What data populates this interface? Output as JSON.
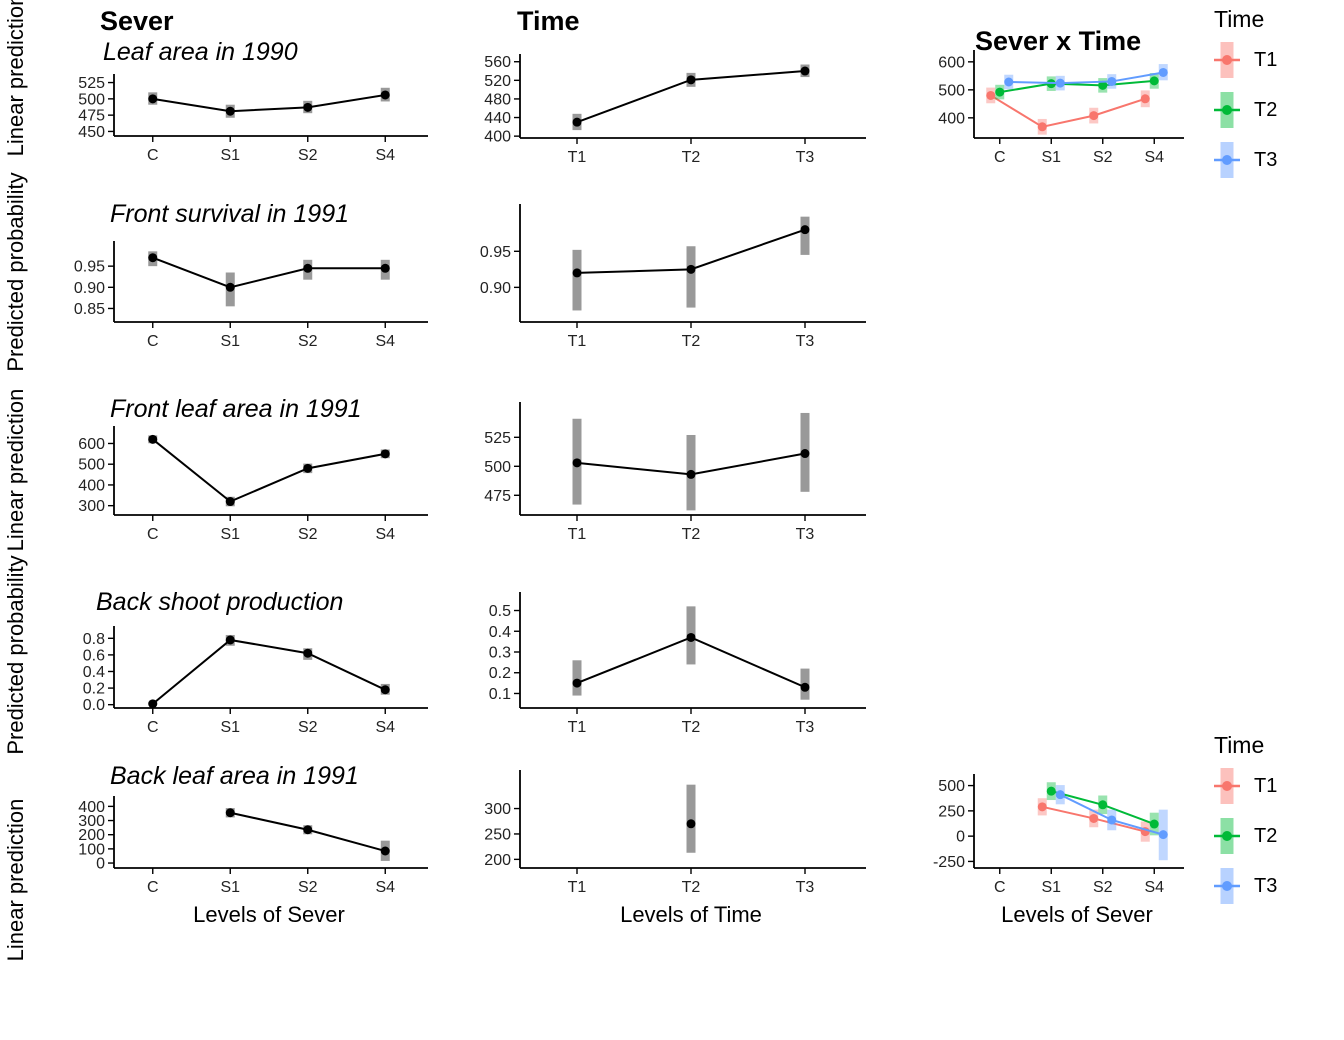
{
  "figure": {
    "columns": [
      "Sever",
      "Time",
      "Sever x Time"
    ],
    "row_titles": [
      "Leaf area in 1990",
      "Front survival in 1991",
      "Front leaf area in 1991",
      "Back shoot production",
      "Back leaf area in 1991"
    ],
    "x_axis_titles": [
      "Levels of Sever",
      "Levels of Time",
      "Levels of Sever"
    ],
    "y_axis_titles": [
      "Linear prediction",
      "Predicted probability",
      "Linear prediction",
      "Predicted probability",
      "Linear prediction"
    ],
    "legend": {
      "title": "Time",
      "entries": [
        {
          "label": "T1",
          "color": "#F8766D"
        },
        {
          "label": "T2",
          "color": "#00BA38"
        },
        {
          "label": "T3",
          "color": "#619CFF"
        }
      ]
    },
    "colors": {
      "point_default": "#000000",
      "errorbar_gray": "#7f7f7f",
      "T1": "#F8766D",
      "T2": "#00BA38",
      "T3": "#619CFF"
    }
  },
  "chart_data": [
    {
      "id": "leaf1990-sever",
      "type": "pointrange-line",
      "row": "Leaf area in 1990",
      "column": "Sever",
      "categories": [
        "C",
        "S1",
        "S2",
        "S4"
      ],
      "ylim": [
        443,
        532
      ],
      "yticks": [
        450,
        475,
        500,
        525
      ],
      "ytick_labels": [
        "450",
        "475",
        "500",
        "525"
      ],
      "series": [
        {
          "name": "fit",
          "color": "#000000",
          "bar_color": "#7f7f7f",
          "bar_opacity": 0.8,
          "points": [
            {
              "x": "C",
              "y": 500,
              "lo": 491,
              "hi": 510
            },
            {
              "x": "S1",
              "y": 481,
              "lo": 471,
              "hi": 491
            },
            {
              "x": "S2",
              "y": 487,
              "lo": 478,
              "hi": 497
            },
            {
              "x": "S4",
              "y": 506,
              "lo": 496,
              "hi": 517
            }
          ]
        }
      ]
    },
    {
      "id": "leaf1990-time",
      "type": "pointrange-line",
      "row": "Leaf area in 1990",
      "column": "Time",
      "categories": [
        "T1",
        "T2",
        "T3"
      ],
      "ylim": [
        396,
        568
      ],
      "yticks": [
        400,
        440,
        480,
        520,
        560
      ],
      "ytick_labels": [
        "400",
        "440",
        "480",
        "520",
        "560"
      ],
      "series": [
        {
          "name": "fit",
          "color": "#000000",
          "bar_color": "#7f7f7f",
          "bar_opacity": 0.8,
          "points": [
            {
              "x": "T1",
              "y": 430,
              "lo": 413,
              "hi": 448
            },
            {
              "x": "T2",
              "y": 521,
              "lo": 506,
              "hi": 536
            },
            {
              "x": "T3",
              "y": 540,
              "lo": 527,
              "hi": 554
            }
          ]
        }
      ]
    },
    {
      "id": "leaf1990-severtime",
      "type": "pointrange-line",
      "row": "Leaf area in 1990",
      "column": "Sever x Time",
      "categories": [
        "C",
        "S1",
        "S2",
        "S4"
      ],
      "ylim": [
        328,
        628
      ],
      "yticks": [
        400,
        500,
        600
      ],
      "ytick_labels": [
        "400",
        "500",
        "600"
      ],
      "series": [
        {
          "name": "T1",
          "color": "#F8766D",
          "bar_opacity": 0.4,
          "points": [
            {
              "x": "C",
              "y": 480,
              "lo": 452,
              "hi": 508
            },
            {
              "x": "S1",
              "y": 368,
              "lo": 340,
              "hi": 396
            },
            {
              "x": "S2",
              "y": 408,
              "lo": 380,
              "hi": 436
            },
            {
              "x": "S4",
              "y": 468,
              "lo": 438,
              "hi": 498
            }
          ]
        },
        {
          "name": "T2",
          "color": "#00BA38",
          "bar_opacity": 0.4,
          "points": [
            {
              "x": "C",
              "y": 492,
              "lo": 466,
              "hi": 518
            },
            {
              "x": "S1",
              "y": 522,
              "lo": 496,
              "hi": 548
            },
            {
              "x": "S2",
              "y": 516,
              "lo": 490,
              "hi": 542
            },
            {
              "x": "S4",
              "y": 532,
              "lo": 504,
              "hi": 560
            }
          ]
        },
        {
          "name": "T3",
          "color": "#619CFF",
          "bar_opacity": 0.4,
          "points": [
            {
              "x": "C",
              "y": 528,
              "lo": 502,
              "hi": 554
            },
            {
              "x": "S1",
              "y": 524,
              "lo": 498,
              "hi": 550
            },
            {
              "x": "S2",
              "y": 530,
              "lo": 504,
              "hi": 556
            },
            {
              "x": "S4",
              "y": 562,
              "lo": 534,
              "hi": 592
            }
          ]
        }
      ]
    },
    {
      "id": "survival1991-sever",
      "type": "pointrange-line",
      "row": "Front survival in 1991",
      "column": "Sever",
      "categories": [
        "C",
        "S1",
        "S2",
        "S4"
      ],
      "ylim": [
        0.818,
        1.0
      ],
      "yticks": [
        0.85,
        0.9,
        0.95
      ],
      "ytick_labels": [
        "0.85",
        "0.90",
        "0.95"
      ],
      "series": [
        {
          "name": "fit",
          "color": "#000000",
          "bar_color": "#7f7f7f",
          "bar_opacity": 0.8,
          "points": [
            {
              "x": "C",
              "y": 0.97,
              "lo": 0.95,
              "hi": 0.985
            },
            {
              "x": "S1",
              "y": 0.9,
              "lo": 0.855,
              "hi": 0.935
            },
            {
              "x": "S2",
              "y": 0.945,
              "lo": 0.918,
              "hi": 0.965
            },
            {
              "x": "S4",
              "y": 0.945,
              "lo": 0.918,
              "hi": 0.965
            }
          ]
        }
      ]
    },
    {
      "id": "survival1991-time",
      "type": "pointrange-line",
      "row": "Front survival in 1991",
      "column": "Time",
      "categories": [
        "T1",
        "T2",
        "T3"
      ],
      "ylim": [
        0.852,
        1.01
      ],
      "yticks": [
        0.9,
        0.95
      ],
      "ytick_labels": [
        "0.90",
        "0.95"
      ],
      "series": [
        {
          "name": "fit",
          "color": "#000000",
          "bar_color": "#7f7f7f",
          "bar_opacity": 0.8,
          "points": [
            {
              "x": "T1",
              "y": 0.92,
              "lo": 0.868,
              "hi": 0.952
            },
            {
              "x": "T2",
              "y": 0.925,
              "lo": 0.872,
              "hi": 0.957
            },
            {
              "x": "T3",
              "y": 0.98,
              "lo": 0.945,
              "hi": 0.998
            }
          ]
        }
      ]
    },
    {
      "id": "frontleaf1991-sever",
      "type": "pointrange-line",
      "row": "Front leaf area in 1991",
      "column": "Sever",
      "categories": [
        "C",
        "S1",
        "S2",
        "S4"
      ],
      "ylim": [
        255,
        665
      ],
      "yticks": [
        300,
        400,
        500,
        600
      ],
      "ytick_labels": [
        "300",
        "400",
        "500",
        "600"
      ],
      "series": [
        {
          "name": "fit",
          "color": "#000000",
          "bar_color": "#7f7f7f",
          "bar_opacity": 0.8,
          "points": [
            {
              "x": "C",
              "y": 620,
              "lo": 601,
              "hi": 639
            },
            {
              "x": "S1",
              "y": 320,
              "lo": 297,
              "hi": 343
            },
            {
              "x": "S2",
              "y": 480,
              "lo": 457,
              "hi": 503
            },
            {
              "x": "S4",
              "y": 550,
              "lo": 529,
              "hi": 571
            }
          ]
        }
      ]
    },
    {
      "id": "frontleaf1991-time",
      "type": "pointrange-line",
      "row": "Front leaf area in 1991",
      "column": "Time",
      "categories": [
        "T1",
        "T2",
        "T3"
      ],
      "ylim": [
        458,
        552
      ],
      "yticks": [
        475,
        500,
        525
      ],
      "ytick_labels": [
        "475",
        "500",
        "525"
      ],
      "series": [
        {
          "name": "fit",
          "color": "#000000",
          "bar_color": "#7f7f7f",
          "bar_opacity": 0.8,
          "points": [
            {
              "x": "T1",
              "y": 503,
              "lo": 467,
              "hi": 541
            },
            {
              "x": "T2",
              "y": 493,
              "lo": 462,
              "hi": 527
            },
            {
              "x": "T3",
              "y": 511,
              "lo": 478,
              "hi": 546
            }
          ]
        }
      ]
    },
    {
      "id": "backshoot-sever",
      "type": "pointrange-line",
      "row": "Back shoot production",
      "column": "Sever",
      "categories": [
        "C",
        "S1",
        "S2",
        "S4"
      ],
      "ylim": [
        -0.04,
        0.9
      ],
      "yticks": [
        0,
        0.2,
        0.4,
        0.6,
        0.8
      ],
      "ytick_labels": [
        "0.0",
        "0.2",
        "0.4",
        "0.6",
        "0.8"
      ],
      "series": [
        {
          "name": "fit",
          "color": "#000000",
          "bar_color": "#7f7f7f",
          "bar_opacity": 0.8,
          "points": [
            {
              "x": "C",
              "y": 0.01,
              "lo": 0.0,
              "hi": 0.035
            },
            {
              "x": "S1",
              "y": 0.78,
              "lo": 0.71,
              "hi": 0.84
            },
            {
              "x": "S2",
              "y": 0.62,
              "lo": 0.54,
              "hi": 0.68
            },
            {
              "x": "S4",
              "y": 0.18,
              "lo": 0.12,
              "hi": 0.25
            }
          ]
        }
      ]
    },
    {
      "id": "backshoot-time",
      "type": "pointrange-line",
      "row": "Back shoot production",
      "column": "Time",
      "categories": [
        "T1",
        "T2",
        "T3"
      ],
      "ylim": [
        0.03,
        0.57
      ],
      "yticks": [
        0.1,
        0.2,
        0.3,
        0.4,
        0.5
      ],
      "ytick_labels": [
        "0.1",
        "0.2",
        "0.3",
        "0.4",
        "0.5"
      ],
      "series": [
        {
          "name": "fit",
          "color": "#000000",
          "bar_color": "#7f7f7f",
          "bar_opacity": 0.8,
          "points": [
            {
              "x": "T1",
              "y": 0.15,
              "lo": 0.09,
              "hi": 0.26
            },
            {
              "x": "T2",
              "y": 0.37,
              "lo": 0.24,
              "hi": 0.52
            },
            {
              "x": "T3",
              "y": 0.13,
              "lo": 0.07,
              "hi": 0.22
            }
          ]
        }
      ]
    },
    {
      "id": "backleaf1991-sever",
      "type": "pointrange-line",
      "row": "Back leaf area in 1991",
      "column": "Sever",
      "categories": [
        "C",
        "S1",
        "S2",
        "S4"
      ],
      "ylim": [
        -35,
        445
      ],
      "yticks": [
        0,
        100,
        200,
        300,
        400
      ],
      "ytick_labels": [
        "0",
        "100",
        "200",
        "300",
        "400"
      ],
      "series": [
        {
          "name": "fit",
          "color": "#000000",
          "bar_color": "#7f7f7f",
          "bar_opacity": 0.8,
          "points": [
            {
              "x": "S1",
              "y": 355,
              "lo": 322,
              "hi": 388
            },
            {
              "x": "S2",
              "y": 235,
              "lo": 203,
              "hi": 267
            },
            {
              "x": "S4",
              "y": 85,
              "lo": 15,
              "hi": 158
            }
          ]
        }
      ]
    },
    {
      "id": "backleaf1991-time",
      "type": "pointrange",
      "row": "Back leaf area in 1991",
      "column": "Time",
      "categories": [
        "T1",
        "T2",
        "T3"
      ],
      "ylim": [
        183,
        368
      ],
      "yticks": [
        200,
        250,
        300
      ],
      "ytick_labels": [
        "200",
        "250",
        "300"
      ],
      "series": [
        {
          "name": "fit",
          "color": "#000000",
          "bar_color": "#7f7f7f",
          "bar_opacity": 0.8,
          "points": [
            {
              "x": "T2",
              "y": 270,
              "lo": 213,
              "hi": 347
            }
          ]
        }
      ]
    },
    {
      "id": "backleaf1991-severtime",
      "type": "pointrange-line",
      "row": "Back leaf area in 1991",
      "column": "Sever x Time",
      "categories": [
        "C",
        "S1",
        "S2",
        "S4"
      ],
      "ylim": [
        -315,
        575
      ],
      "yticks": [
        -250,
        0,
        250,
        500
      ],
      "ytick_labels": [
        "-250",
        "0",
        "250",
        "500"
      ],
      "series": [
        {
          "name": "T1",
          "color": "#F8766D",
          "bar_opacity": 0.4,
          "points": [
            {
              "x": "S1",
              "y": 290,
              "lo": 205,
              "hi": 375
            },
            {
              "x": "S2",
              "y": 175,
              "lo": 88,
              "hi": 262
            },
            {
              "x": "S4",
              "y": 45,
              "lo": -55,
              "hi": 145
            }
          ]
        },
        {
          "name": "T2",
          "color": "#00BA38",
          "bar_opacity": 0.4,
          "points": [
            {
              "x": "S1",
              "y": 445,
              "lo": 357,
              "hi": 533
            },
            {
              "x": "S2",
              "y": 310,
              "lo": 218,
              "hi": 402
            },
            {
              "x": "S4",
              "y": 120,
              "lo": 8,
              "hi": 232
            }
          ]
        },
        {
          "name": "T3",
          "color": "#619CFF",
          "bar_opacity": 0.4,
          "points": [
            {
              "x": "S1",
              "y": 410,
              "lo": 315,
              "hi": 505
            },
            {
              "x": "S2",
              "y": 160,
              "lo": 58,
              "hi": 262
            },
            {
              "x": "S4",
              "y": 15,
              "lo": -238,
              "hi": 262
            }
          ]
        }
      ]
    }
  ]
}
